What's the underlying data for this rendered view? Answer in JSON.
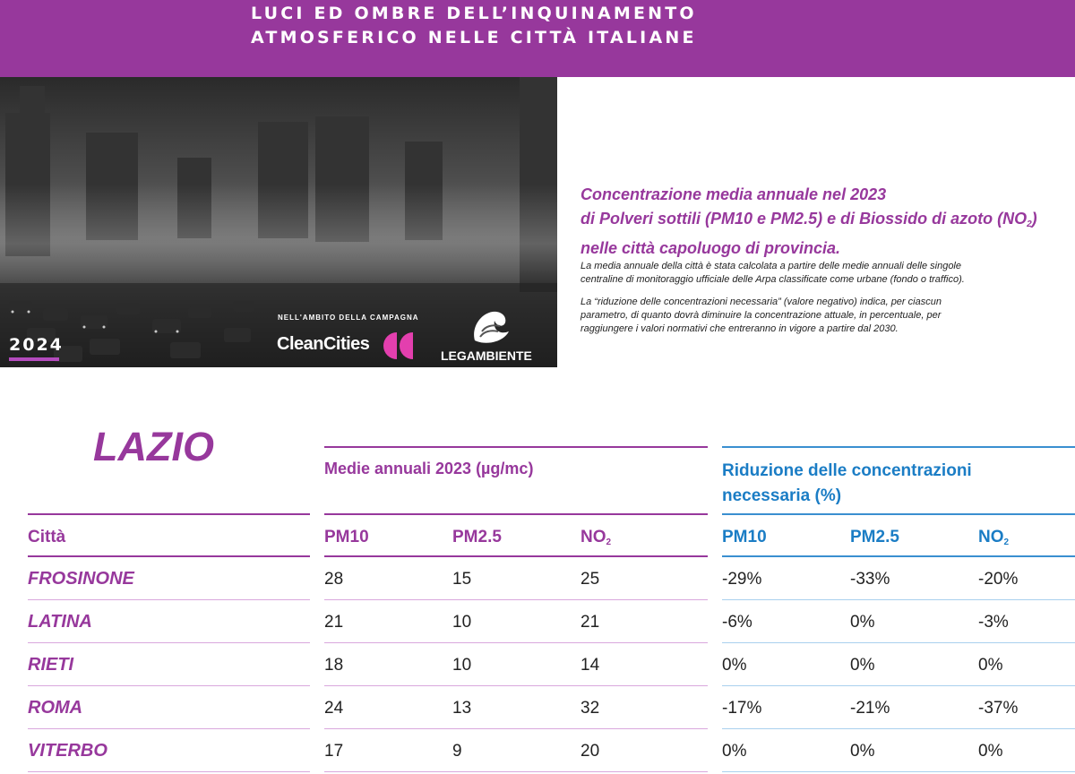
{
  "header": {
    "title_line1": "LUCI ED OMBRE DELL’INQUINAMENTO",
    "title_line2": "ATMOSFERICO NELLE CITTÀ ITALIANE"
  },
  "photo": {
    "year": "2024",
    "campaign_label": "NELL'AMBITO DELLA CAMPAGNA",
    "campaign_name": "CleanCities",
    "org_name": "LEGAMBIENTE"
  },
  "intro": {
    "headline_line1": "Concentrazione media annuale nel 2023",
    "headline_line2": "di Polveri sottili (PM10 e PM2.5) e di Biossido di azoto (NO",
    "headline_sub": "2",
    "headline_close": ")",
    "headline_line3": "nelle città capoluogo di provincia.",
    "desc1_line1": "La media annuale della città è stata calcolata a partire delle medie annuali delle singole",
    "desc1_line2": "centraline di monitoraggio ufficiale delle Arpa classificate come urbane (fondo o traffico).",
    "desc2_line1": "La “riduzione delle concentrazioni necessaria” (valore negativo) indica, per ciascun",
    "desc2_line2": "parametro, di quanto dovrà diminuire la concentrazione attuale, in percentuale, per",
    "desc2_line3": "raggiungere i valori normativi che entreranno in vigore a partire dal 2030."
  },
  "table": {
    "region": "LAZIO",
    "group_left": "Medie annuali 2023 (µg/mc)",
    "group_right_line1": "Riduzione delle concentrazioni",
    "group_right_line2": "necessaria (%)",
    "col_city": "Città",
    "col_pm10": "PM10",
    "col_pm25": "PM2.5",
    "col_no2": "NO",
    "col_no2_sub": "2",
    "rows": [
      {
        "city": "FROSINONE",
        "pm10": "28",
        "pm25": "15",
        "no2": "25",
        "r_pm10": "-29%",
        "r_pm25": "-33%",
        "r_no2": "-20%"
      },
      {
        "city": "LATINA",
        "pm10": "21",
        "pm25": "10",
        "no2": "21",
        "r_pm10": "-6%",
        "r_pm25": "0%",
        "r_no2": "-3%"
      },
      {
        "city": "RIETI",
        "pm10": "18",
        "pm25": "10",
        "no2": "14",
        "r_pm10": "0%",
        "r_pm25": "0%",
        "r_no2": "0%"
      },
      {
        "city": "ROMA",
        "pm10": "24",
        "pm25": "13",
        "no2": "32",
        "r_pm10": "-17%",
        "r_pm25": "-21%",
        "r_no2": "-37%"
      },
      {
        "city": "VITERBO",
        "pm10": "17",
        "pm25": "9",
        "no2": "20",
        "r_pm10": "0%",
        "r_pm25": "0%",
        "r_no2": "0%"
      }
    ]
  },
  "colors": {
    "brand_purple": "#97389c",
    "accent_blue": "#1b7dc5"
  }
}
